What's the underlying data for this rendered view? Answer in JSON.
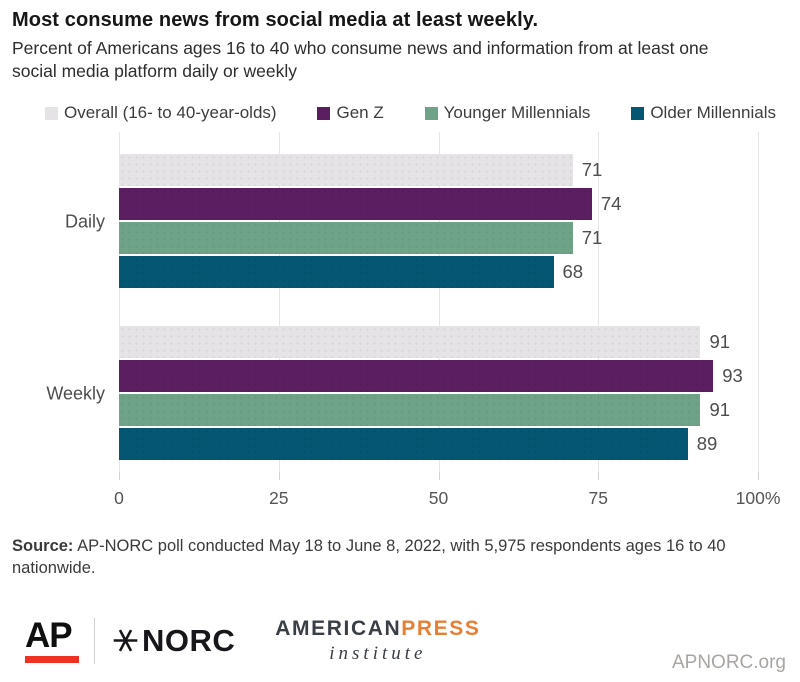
{
  "chart_data": {
    "type": "bar",
    "orientation": "horizontal",
    "title": "Most consume news from social media at least weekly.",
    "subtitle": "Percent of Americans ages 16 to 40 who consume news and information from at least one social media platform daily or weekly",
    "categories": [
      "Daily",
      "Weekly"
    ],
    "series": [
      {
        "name": "Overall (16- to 40-year-olds)",
        "color": "#e5e3e6",
        "values": [
          71,
          91
        ]
      },
      {
        "name": "Gen Z",
        "color": "#5b1e60",
        "values": [
          74,
          93
        ]
      },
      {
        "name": "Younger Millennials",
        "color": "#6fa388",
        "values": [
          71,
          91
        ]
      },
      {
        "name": "Older Millennials",
        "color": "#045672",
        "values": [
          68,
          89
        ]
      }
    ],
    "xlim": [
      0,
      100
    ],
    "xticks": [
      0,
      25,
      50,
      75,
      100
    ],
    "xtick_labels": [
      "0",
      "25",
      "50",
      "75",
      "100%"
    ],
    "value_labels": true,
    "grid": "vertical",
    "legend_position": "top"
  },
  "source": {
    "label": "Source:",
    "text": " AP-NORC poll conducted May 18 to June 8, 2022, with 5,975 respondents ages 16 to 40 nationwide."
  },
  "footer": {
    "ap": "AP",
    "norc": "NORC",
    "api_word1": "AMERICAN",
    "api_word2": "PRESS",
    "api_sub": "institute",
    "website": "APNORC.org"
  },
  "colors": {
    "ap_red": "#ee3224",
    "api_orange": "#e87f35",
    "norc_ink": "#17171b",
    "gridline": "#e6e6e6",
    "axis_text": "#4d4d4d"
  }
}
